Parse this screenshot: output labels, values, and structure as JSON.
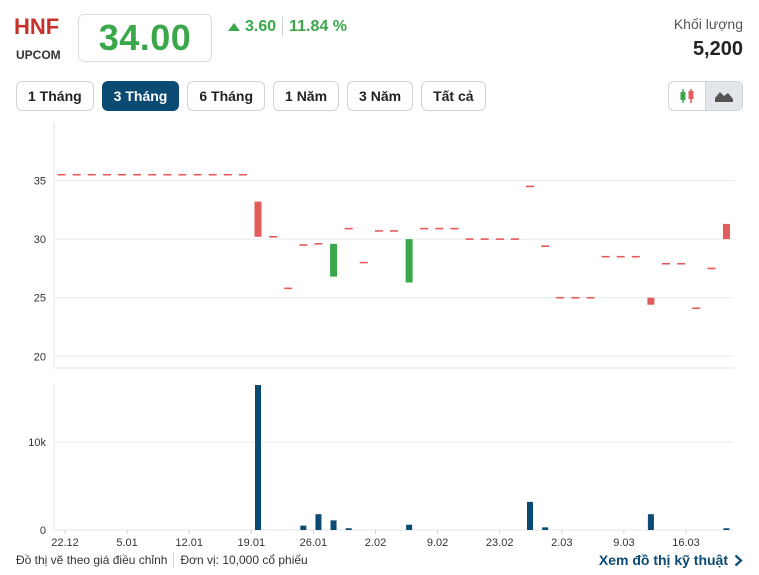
{
  "header": {
    "ticker": "HNF",
    "exchange": "UPCOM",
    "price": "34.00",
    "change": "3.60",
    "change_pct": "11.84 %",
    "volume_label": "Khối lượng",
    "volume_value": "5,200"
  },
  "colors": {
    "up": "#3aa84a",
    "down": "#e45b5b",
    "volume": "#0b4a72",
    "ticker": "#c8302c"
  },
  "tabs": [
    {
      "label": "1 Tháng",
      "active": false
    },
    {
      "label": "3 Tháng",
      "active": true
    },
    {
      "label": "6 Tháng",
      "active": false
    },
    {
      "label": "1 Năm",
      "active": false
    },
    {
      "label": "3 Năm",
      "active": false
    },
    {
      "label": "Tất cả",
      "active": false
    }
  ],
  "chart_type_toggle": {
    "options": [
      "candlestick-icon",
      "area-chart-icon"
    ],
    "selected": "area-chart-icon"
  },
  "chart_data": [
    {
      "type": "candlestick",
      "x_ticks": [
        "22.12",
        "5.01",
        "12.01",
        "19.01",
        "26.01",
        "2.02",
        "9.02",
        "23.02",
        "2.03",
        "9.03",
        "16.03"
      ],
      "y_ticks": [
        20,
        25,
        30,
        35
      ],
      "ylim": [
        19,
        40
      ],
      "grid": true,
      "candles": [
        {
          "open": 35.5,
          "close": 35.5
        },
        {
          "open": 35.5,
          "close": 35.5
        },
        {
          "open": 35.5,
          "close": 35.5
        },
        {
          "open": 35.5,
          "close": 35.5
        },
        {
          "open": 35.5,
          "close": 35.5
        },
        {
          "open": 35.5,
          "close": 35.5
        },
        {
          "open": 35.5,
          "close": 35.5
        },
        {
          "open": 35.5,
          "close": 35.5
        },
        {
          "open": 35.5,
          "close": 35.5
        },
        {
          "open": 35.5,
          "close": 35.5
        },
        {
          "open": 35.5,
          "close": 35.5
        },
        {
          "open": 35.5,
          "close": 35.5
        },
        {
          "open": 35.5,
          "close": 35.5
        },
        {
          "open": 33.2,
          "close": 30.2
        },
        {
          "open": 30.2,
          "close": 30.2
        },
        {
          "open": 25.8,
          "close": 25.8
        },
        {
          "open": 29.5,
          "close": 29.5
        },
        {
          "open": 29.6,
          "close": 29.6
        },
        {
          "open": 26.8,
          "close": 29.6
        },
        {
          "open": 30.9,
          "close": 30.9
        },
        {
          "open": 28.0,
          "close": 28.0
        },
        {
          "open": 30.7,
          "close": 30.7
        },
        {
          "open": 30.7,
          "close": 30.7
        },
        {
          "open": 26.3,
          "close": 30.0
        },
        {
          "open": 30.9,
          "close": 30.9
        },
        {
          "open": 30.9,
          "close": 30.9
        },
        {
          "open": 30.9,
          "close": 30.9
        },
        {
          "open": 30.0,
          "close": 30.0
        },
        {
          "open": 30.0,
          "close": 30.0
        },
        {
          "open": 30.0,
          "close": 30.0
        },
        {
          "open": 30.0,
          "close": 30.0
        },
        {
          "open": 34.5,
          "close": 34.5
        },
        {
          "open": 29.4,
          "close": 29.4
        },
        {
          "open": 25.0,
          "close": 25.0
        },
        {
          "open": 25.0,
          "close": 25.0
        },
        {
          "open": 25.0,
          "close": 25.0
        },
        {
          "open": 28.5,
          "close": 28.5
        },
        {
          "open": 28.5,
          "close": 28.5
        },
        {
          "open": 28.5,
          "close": 28.5
        },
        {
          "open": 25.0,
          "close": 24.4
        },
        {
          "open": 27.9,
          "close": 27.9
        },
        {
          "open": 27.9,
          "close": 27.9
        },
        {
          "open": 24.1,
          "close": 24.1
        },
        {
          "open": 27.5,
          "close": 27.5
        },
        {
          "open": 31.3,
          "close": 30.0
        }
      ]
    },
    {
      "type": "bar",
      "y_ticks": [
        0,
        10000
      ],
      "y_tick_labels": [
        "0",
        "10k"
      ],
      "ylim": [
        0,
        16500
      ],
      "values": [
        0,
        0,
        0,
        0,
        0,
        0,
        0,
        0,
        0,
        0,
        0,
        0,
        0,
        16500,
        0,
        0,
        500,
        1800,
        1100,
        200,
        0,
        0,
        0,
        600,
        0,
        0,
        0,
        0,
        0,
        0,
        0,
        3200,
        300,
        0,
        0,
        0,
        0,
        0,
        0,
        1800,
        0,
        0,
        0,
        0,
        200
      ]
    }
  ],
  "footer": {
    "note": "Đồ thị vẽ theo giá điều chỉnh",
    "unit": "Đơn vị: 10,000 cổ phiếu",
    "link": "Xem đồ thị kỹ thuật"
  }
}
